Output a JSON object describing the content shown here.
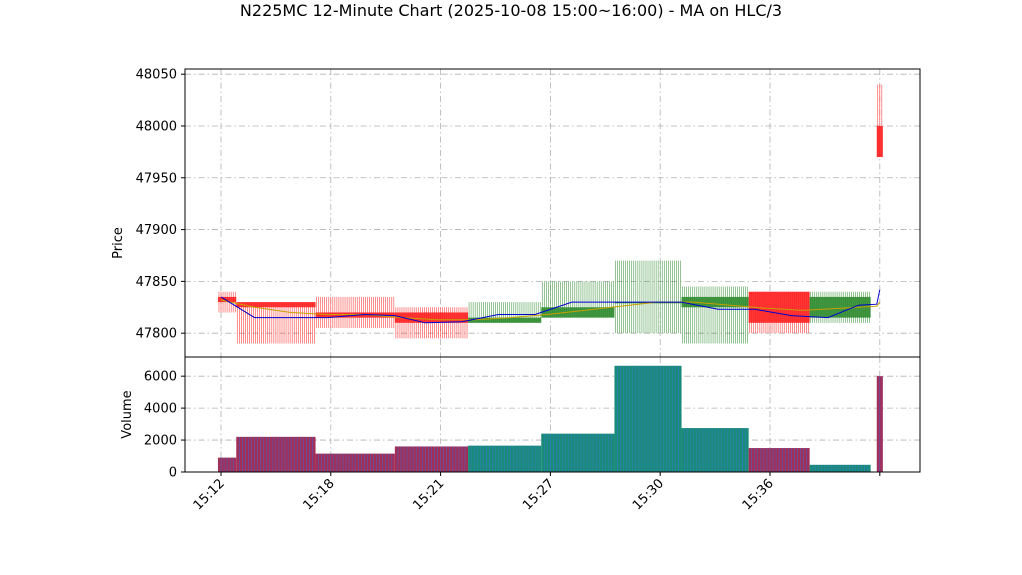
{
  "chart_data": {
    "type": "candlestick",
    "title": "N225MC 12-Minute Chart (2025-10-08 15:00~16:00) - MA on HLC/3",
    "grid": true,
    "colors": {
      "up": "#2e8b2e",
      "down": "#ff2020",
      "ma_short": "#0000cc",
      "ma_long": "#c8a000",
      "vol_up": "#1a8a7a",
      "vol_down": "#a0305a",
      "grid": "#b0b0b0"
    },
    "price_panel": {
      "ylabel": "Price",
      "ylim": [
        47777,
        48055
      ],
      "yticks": [
        47800,
        47850,
        47900,
        47950,
        48000,
        48050
      ]
    },
    "volume_panel": {
      "ylabel": "Volume",
      "ylim": [
        0,
        7200
      ],
      "yticks": [
        0,
        2000,
        4000,
        6000
      ]
    },
    "x_ticks": [
      {
        "label": "15:12",
        "pos": 0.5
      },
      {
        "label": "15:18",
        "pos": 18.5
      },
      {
        "label": "15:21",
        "pos": 36.5
      },
      {
        "label": "15:27",
        "pos": 54.5
      },
      {
        "label": "15:30",
        "pos": 72.5
      },
      {
        "label": "15:36",
        "pos": 90.5
      },
      {
        "label": "",
        "pos": 108.5
      }
    ],
    "bars": [
      {
        "start": 0,
        "n": 3,
        "open": 47835,
        "high": 47840,
        "low": 47820,
        "close": 47830,
        "volume": 900
      },
      {
        "start": 3,
        "n": 13,
        "open": 47830,
        "high": 47830,
        "low": 47790,
        "close": 47825,
        "volume": 2200
      },
      {
        "start": 16,
        "n": 13,
        "open": 47820,
        "high": 47835,
        "low": 47805,
        "close": 47815,
        "volume": 1150
      },
      {
        "start": 29,
        "n": 12,
        "open": 47820,
        "high": 47825,
        "low": 47795,
        "close": 47810,
        "volume": 1600
      },
      {
        "start": 41,
        "n": 12,
        "open": 47810,
        "high": 47830,
        "low": 47810,
        "close": 47815,
        "volume": 1650
      },
      {
        "start": 53,
        "n": 12,
        "open": 47815,
        "high": 47850,
        "low": 47815,
        "close": 47825,
        "volume": 2400
      },
      {
        "start": 65,
        "n": 11,
        "open": 47830,
        "high": 47870,
        "low": 47800,
        "close": 47830,
        "volume": 6650
      },
      {
        "start": 76,
        "n": 11,
        "open": 47825,
        "high": 47845,
        "low": 47790,
        "close": 47835,
        "volume": 2750
      },
      {
        "start": 87,
        "n": 10,
        "open": 47840,
        "high": 47840,
        "low": 47800,
        "close": 47810,
        "volume": 1500
      },
      {
        "start": 97,
        "n": 10,
        "open": 47815,
        "high": 47840,
        "low": 47810,
        "close": 47835,
        "volume": 450
      },
      {
        "start": 108,
        "n": 1,
        "open": 48000,
        "high": 48040,
        "low": 47970,
        "close": 47970,
        "volume": 6000
      }
    ],
    "ma_short": [
      [
        0.5,
        47835
      ],
      [
        6,
        47815
      ],
      [
        12,
        47815
      ],
      [
        18,
        47815
      ],
      [
        24,
        47818
      ],
      [
        29,
        47817
      ],
      [
        34,
        47810
      ],
      [
        40,
        47811
      ],
      [
        46,
        47818
      ],
      [
        52,
        47818
      ],
      [
        58,
        47830
      ],
      [
        64,
        47830
      ],
      [
        70,
        47830
      ],
      [
        76,
        47830
      ],
      [
        82,
        47823
      ],
      [
        88,
        47823
      ],
      [
        94,
        47817
      ],
      [
        100,
        47815
      ],
      [
        105,
        47827
      ],
      [
        108,
        47828
      ],
      [
        108.5,
        47842
      ]
    ],
    "ma_long": [
      [
        0.5,
        47832
      ],
      [
        6,
        47825
      ],
      [
        12,
        47820
      ],
      [
        18,
        47818
      ],
      [
        24,
        47818
      ],
      [
        30,
        47815
      ],
      [
        36,
        47813
      ],
      [
        42,
        47813
      ],
      [
        48,
        47815
      ],
      [
        54,
        47818
      ],
      [
        60,
        47822
      ],
      [
        66,
        47826
      ],
      [
        72,
        47830
      ],
      [
        78,
        47830
      ],
      [
        84,
        47827
      ],
      [
        90,
        47824
      ],
      [
        96,
        47822
      ],
      [
        102,
        47824
      ],
      [
        108,
        47826
      ],
      [
        108.5,
        47830
      ]
    ]
  }
}
